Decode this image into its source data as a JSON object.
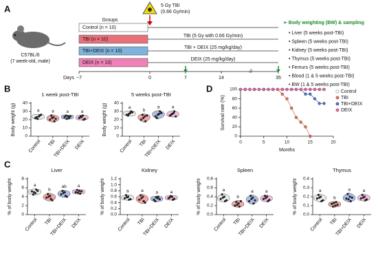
{
  "panel_labels": [
    "A",
    "B",
    "C",
    "D"
  ],
  "panel_a": {
    "mouse_label": [
      "C57BL/6",
      "(7 week-old, male)"
    ],
    "groups_title": "Groups",
    "irradiation": [
      "5 Gy TBI",
      "(0.66 Gy/min)"
    ],
    "groups": [
      {
        "label": "Control (n = 10)",
        "color": "#ffffff",
        "treatment": null
      },
      {
        "label": "TBI  (n = 10)",
        "color": "#e8707a",
        "treatment": "TBI (5 Gy with 0.66 Gy/min)"
      },
      {
        "label": "TBI+DEIX (n = 10)",
        "color": "#7fb2dc",
        "treatment": "TBI + DEIX (25 mg/kg/day)"
      },
      {
        "label": "DEIX  (n = 10)",
        "color": "#f080b8",
        "treatment": "DEIX (25 mg/kg/day)"
      }
    ],
    "days_label": "Days",
    "days": [
      "−7",
      "0",
      "7",
      "14",
      "35"
    ],
    "sampling_title": "➢ Body weighting (BW) & sampling",
    "sampling_items": [
      "• Liver (5 weeks post-TBI)",
      "• Spleen (5 weeks post-TBI)",
      "• Kidney (5 weeks post-TBI)",
      "• Thymus (5 weeks post-TBI)",
      "• Femurs (5 weeks post-TBI)",
      "• Blood (1 & 5 weeks post-TBI)",
      "• BW (1 & 5 weeks post-TBI)"
    ]
  },
  "chart_data": [
    {
      "type": "violin",
      "title": "1 week post-TBI",
      "ylabel": "Body weight (g)",
      "categories": [
        "Control",
        "TBI",
        "TBI+DEIX",
        "DEIX"
      ],
      "colors": [
        "#e6e6e6",
        "#ee8a8a",
        "#93a8e0",
        "#f3a9d4"
      ],
      "ylim": [
        0,
        40
      ],
      "yticks": [
        0,
        10,
        20,
        30,
        40
      ],
      "letters": [
        "a",
        "a",
        "a",
        "a"
      ],
      "values": [
        [
          22,
          24,
          25,
          23,
          21,
          26
        ],
        [
          20,
          23,
          18,
          25,
          22,
          21
        ],
        [
          23,
          24,
          22,
          25,
          21,
          24
        ],
        [
          22,
          25,
          20,
          24,
          23,
          21
        ]
      ]
    },
    {
      "type": "violin",
      "title": "5 weeks post-TBI",
      "ylabel": "Body weight (g)",
      "categories": [
        "Control",
        "TBI",
        "TBI+DEIX",
        "DEIX"
      ],
      "colors": [
        "#e6e6e6",
        "#ee8a8a",
        "#93a8e0",
        "#f3a9d4"
      ],
      "ylim": [
        0,
        40
      ],
      "yticks": [
        0,
        10,
        20,
        30,
        40
      ],
      "letters": [
        "a",
        "b",
        "a",
        "a"
      ],
      "values": [
        [
          26,
          28,
          30,
          25,
          27,
          29
        ],
        [
          20,
          24,
          18,
          26,
          22,
          25
        ],
        [
          24,
          27,
          30,
          22,
          26,
          28
        ],
        [
          25,
          28,
          30,
          26,
          27,
          24
        ]
      ]
    },
    {
      "type": "line",
      "xlabel": "Months",
      "ylabel": "Survival rate (%)",
      "x": [
        0,
        1,
        2,
        3,
        4,
        5,
        6,
        7,
        8,
        9,
        10,
        11,
        12,
        13,
        14,
        15,
        16,
        17,
        18
      ],
      "xlim": [
        0,
        20
      ],
      "xticks": [
        0,
        5,
        10,
        15,
        20
      ],
      "ylim": [
        0,
        100
      ],
      "yticks": [
        0,
        20,
        40,
        60,
        80,
        100
      ],
      "legend": "right",
      "series": [
        {
          "name": "Control",
          "color": "#ffffff",
          "values": [
            100,
            100,
            100,
            100,
            100,
            100,
            100,
            100,
            100,
            100,
            100,
            100,
            100,
            100,
            100,
            100,
            100,
            100,
            100
          ]
        },
        {
          "name": "TBI",
          "color": "#e8705a",
          "values": [
            100,
            100,
            100,
            100,
            100,
            100,
            100,
            100,
            100,
            90,
            80,
            60,
            40,
            30,
            20,
            0,
            null,
            null,
            null
          ]
        },
        {
          "name": "TBI+DEIX",
          "color": "#4a6fc8",
          "values": [
            100,
            100,
            100,
            100,
            100,
            100,
            100,
            100,
            100,
            100,
            100,
            100,
            100,
            100,
            90,
            90,
            80,
            70,
            70
          ]
        },
        {
          "name": "DEIX",
          "color": "#ee5fa8",
          "values": [
            100,
            100,
            100,
            100,
            100,
            100,
            100,
            100,
            100,
            100,
            100,
            100,
            100,
            100,
            100,
            100,
            100,
            100,
            100
          ]
        }
      ]
    },
    {
      "type": "violin",
      "title": "Liver",
      "ylabel": "% of body weight",
      "categories": [
        "Control",
        "TBI",
        "TBI+DEIX",
        "DEIX"
      ],
      "colors": [
        "#e6e6e6",
        "#ee8a8a",
        "#93a8e0",
        "#f3a9d4"
      ],
      "ylim": [
        0,
        8
      ],
      "yticks": [
        0,
        2,
        4,
        6,
        8
      ],
      "letters": [
        "a",
        "b",
        "ab",
        "a"
      ],
      "values": [
        [
          5.2,
          4.8,
          5.6,
          4.5,
          5.0,
          5.3
        ],
        [
          3.8,
          4.2,
          3.5,
          4.6,
          4.0,
          3.2
        ],
        [
          4.5,
          5.0,
          4.2,
          5.3,
          4.8,
          4.0
        ],
        [
          5.0,
          5.3,
          4.7,
          5.5,
          4.9,
          5.2
        ]
      ]
    },
    {
      "type": "violin",
      "title": "Kidney",
      "ylabel": "% of body weight",
      "categories": [
        "Control",
        "TBI",
        "TBI+DEIX",
        "DEIX"
      ],
      "colors": [
        "#e6e6e6",
        "#ee8a8a",
        "#93a8e0",
        "#f3a9d4"
      ],
      "ylim": [
        0,
        1.2
      ],
      "yticks": [
        {
          "value": 0,
          "label": "0.0"
        },
        0.2,
        0.4,
        0.6,
        0.8,
        {
          "value": 1,
          "label": "1.0"
        },
        1.2
      ],
      "letters": [
        "a",
        "a",
        "a",
        "a"
      ],
      "values": [
        [
          0.55,
          0.6,
          0.5,
          0.65,
          0.58,
          0.52
        ],
        [
          0.5,
          0.6,
          0.45,
          0.65,
          0.55,
          0.4
        ],
        [
          0.5,
          0.55,
          0.6,
          0.45,
          0.58,
          0.52
        ],
        [
          0.55,
          0.6,
          0.5,
          0.58,
          0.62,
          0.53
        ]
      ]
    },
    {
      "type": "violin",
      "title": "Spleen",
      "ylabel": "% of body weight",
      "categories": [
        "Control",
        "TBI",
        "TBI+DEIX",
        "DEIX"
      ],
      "colors": [
        "#e6e6e6",
        "#ee8a8a",
        "#93a8e0",
        "#f3a9d4"
      ],
      "ylim": [
        0,
        0.8
      ],
      "yticks": [
        {
          "value": 0,
          "label": "0.0"
        },
        0.2,
        0.4,
        0.6,
        0.8
      ],
      "letters": [
        "a",
        "b",
        "a",
        "a"
      ],
      "values": [
        [
          0.35,
          0.4,
          0.3,
          0.45,
          0.38,
          0.32
        ],
        [
          0.2,
          0.25,
          0.18,
          0.28,
          0.22,
          0.3
        ],
        [
          0.3,
          0.38,
          0.25,
          0.42,
          0.35,
          0.32
        ],
        [
          0.35,
          0.4,
          0.3,
          0.42,
          0.37,
          0.33
        ]
      ]
    },
    {
      "type": "violin",
      "title": "Thymus",
      "ylabel": "% of body weight",
      "categories": [
        "Control",
        "TBI",
        "TBI+DEIX",
        "DEIX"
      ],
      "colors": [
        "#e6e6e6",
        "#ee8a8a",
        "#93a8e0",
        "#f3a9d4"
      ],
      "ylim": [
        0,
        0.4
      ],
      "yticks": [
        {
          "value": 0,
          "label": "0.0"
        },
        0.1,
        0.2,
        0.3,
        0.4
      ],
      "letters": [
        "a",
        "b",
        "a",
        "a"
      ],
      "values": [
        [
          0.18,
          0.2,
          0.15,
          0.22,
          0.19,
          0.16
        ],
        [
          0.12,
          0.1,
          0.14,
          0.09,
          0.13,
          0.11
        ],
        [
          0.18,
          0.2,
          0.15,
          0.23,
          0.17,
          0.19
        ],
        [
          0.18,
          0.2,
          0.16,
          0.22,
          0.19,
          0.17
        ]
      ]
    }
  ]
}
